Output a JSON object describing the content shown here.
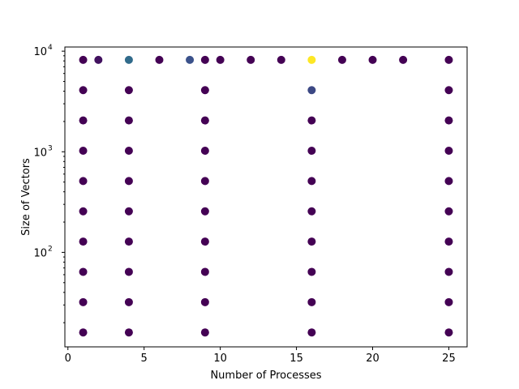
{
  "chart_data": {
    "type": "scatter",
    "xlabel": "Number of Processes",
    "ylabel": "Size of Vectors",
    "xlim": [
      -0.2,
      26.2
    ],
    "ylim": [
      11.5,
      11000
    ],
    "yscale": "log",
    "x_ticks": [
      0,
      5,
      10,
      15,
      20,
      25
    ],
    "y_ticks": [
      {
        "value": 100,
        "base": "10",
        "exp": "2"
      },
      {
        "value": 1000,
        "base": "10",
        "exp": "3"
      },
      {
        "value": 10000,
        "base": "10",
        "exp": "4"
      }
    ],
    "grid": false,
    "colormap": "viridis",
    "points": [
      {
        "x": 1,
        "y": 16,
        "c": 0.0
      },
      {
        "x": 1,
        "y": 32,
        "c": 0.0
      },
      {
        "x": 1,
        "y": 64,
        "c": 0.0
      },
      {
        "x": 1,
        "y": 128,
        "c": 0.0
      },
      {
        "x": 1,
        "y": 256,
        "c": 0.0
      },
      {
        "x": 1,
        "y": 512,
        "c": 0.0
      },
      {
        "x": 1,
        "y": 1024,
        "c": 0.0
      },
      {
        "x": 1,
        "y": 2048,
        "c": 0.0
      },
      {
        "x": 1,
        "y": 4096,
        "c": 0.0
      },
      {
        "x": 1,
        "y": 8192,
        "c": 0.0
      },
      {
        "x": 4,
        "y": 16,
        "c": 0.0
      },
      {
        "x": 4,
        "y": 32,
        "c": 0.0
      },
      {
        "x": 4,
        "y": 64,
        "c": 0.0
      },
      {
        "x": 4,
        "y": 128,
        "c": 0.0
      },
      {
        "x": 4,
        "y": 256,
        "c": 0.0
      },
      {
        "x": 4,
        "y": 512,
        "c": 0.0
      },
      {
        "x": 4,
        "y": 1024,
        "c": 0.0
      },
      {
        "x": 4,
        "y": 2048,
        "c": 0.0
      },
      {
        "x": 4,
        "y": 4096,
        "c": 0.0
      },
      {
        "x": 4,
        "y": 8192,
        "c": 0.35
      },
      {
        "x": 9,
        "y": 16,
        "c": 0.0
      },
      {
        "x": 9,
        "y": 32,
        "c": 0.0
      },
      {
        "x": 9,
        "y": 64,
        "c": 0.0
      },
      {
        "x": 9,
        "y": 128,
        "c": 0.0
      },
      {
        "x": 9,
        "y": 256,
        "c": 0.0
      },
      {
        "x": 9,
        "y": 512,
        "c": 0.0
      },
      {
        "x": 9,
        "y": 1024,
        "c": 0.0
      },
      {
        "x": 9,
        "y": 2048,
        "c": 0.0
      },
      {
        "x": 9,
        "y": 4096,
        "c": 0.0
      },
      {
        "x": 9,
        "y": 8192,
        "c": 0.0
      },
      {
        "x": 16,
        "y": 16,
        "c": 0.0
      },
      {
        "x": 16,
        "y": 32,
        "c": 0.0
      },
      {
        "x": 16,
        "y": 64,
        "c": 0.0
      },
      {
        "x": 16,
        "y": 128,
        "c": 0.0
      },
      {
        "x": 16,
        "y": 256,
        "c": 0.0
      },
      {
        "x": 16,
        "y": 512,
        "c": 0.0
      },
      {
        "x": 16,
        "y": 1024,
        "c": 0.0
      },
      {
        "x": 16,
        "y": 2048,
        "c": 0.0
      },
      {
        "x": 16,
        "y": 4096,
        "c": 0.22
      },
      {
        "x": 16,
        "y": 8192,
        "c": 1.0
      },
      {
        "x": 25,
        "y": 16,
        "c": 0.0
      },
      {
        "x": 25,
        "y": 32,
        "c": 0.0
      },
      {
        "x": 25,
        "y": 64,
        "c": 0.0
      },
      {
        "x": 25,
        "y": 128,
        "c": 0.0
      },
      {
        "x": 25,
        "y": 256,
        "c": 0.0
      },
      {
        "x": 25,
        "y": 512,
        "c": 0.0
      },
      {
        "x": 25,
        "y": 1024,
        "c": 0.0
      },
      {
        "x": 25,
        "y": 2048,
        "c": 0.0
      },
      {
        "x": 25,
        "y": 4096,
        "c": 0.0
      },
      {
        "x": 25,
        "y": 8192,
        "c": 0.0
      },
      {
        "x": 2,
        "y": 8192,
        "c": 0.05
      },
      {
        "x": 6,
        "y": 8192,
        "c": 0.0
      },
      {
        "x": 8,
        "y": 8192,
        "c": 0.25
      },
      {
        "x": 10,
        "y": 8192,
        "c": 0.0
      },
      {
        "x": 12,
        "y": 8192,
        "c": 0.0
      },
      {
        "x": 14,
        "y": 8192,
        "c": 0.0
      },
      {
        "x": 18,
        "y": 8192,
        "c": 0.0
      },
      {
        "x": 20,
        "y": 8192,
        "c": 0.0
      },
      {
        "x": 22,
        "y": 8192,
        "c": 0.0
      }
    ]
  }
}
